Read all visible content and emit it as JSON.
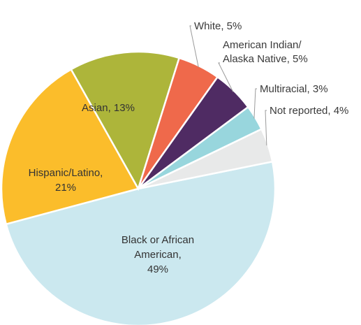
{
  "chart_data": {
    "type": "pie",
    "title": "",
    "slices": [
      {
        "label": "Black or African American, 49%",
        "lines": [
          "Black or African",
          "American,",
          "49%"
        ],
        "value": 49,
        "color": "#cbe8ef"
      },
      {
        "label": "Hispanic/Latino, 21%",
        "lines": [
          "Hispanic/Latino,",
          "21%"
        ],
        "value": 21,
        "color": "#fbbd2b"
      },
      {
        "label": "Asian, 13%",
        "lines": [
          "Asian, 13%"
        ],
        "value": 13,
        "color": "#adb53a"
      },
      {
        "label": "White, 5%",
        "lines": [
          "White, 5%"
        ],
        "value": 5,
        "color": "#ef694b"
      },
      {
        "label": "American Indian/ Alaska Native, 5%",
        "lines": [
          "American Indian/",
          "Alaska Native, 5%"
        ],
        "value": 5,
        "color": "#4f2b63"
      },
      {
        "label": "Multiracial, 3%",
        "lines": [
          "Multiracial, 3%"
        ],
        "value": 3,
        "color": "#98d6dd"
      },
      {
        "label": "Not reported, 4%",
        "lines": [
          "Not reported, 4%"
        ],
        "value": 4,
        "color": "#e8e9e9"
      }
    ]
  }
}
